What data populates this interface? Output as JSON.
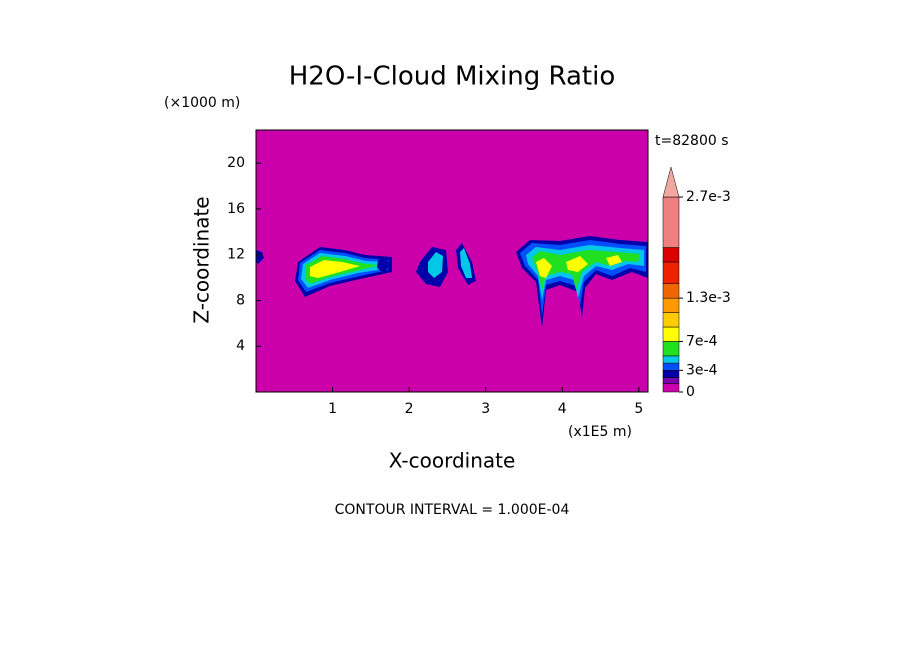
{
  "chart_data": {
    "type": "contour",
    "title": "H2O-I-Cloud Mixing Ratio",
    "y_unit": "(×1000 m)",
    "x_unit": "(x1E5 m)",
    "time_label": "t=82800 s",
    "xlabel": "X-coordinate",
    "ylabel": "Z-coordinate",
    "footnote": "CONTOUR INTERVAL = 1.000E-04",
    "xlim": [
      0,
      5.12
    ],
    "xticks": [
      1,
      2,
      3,
      4,
      5
    ],
    "ylim": [
      0,
      22.9
    ],
    "yticks": [
      4,
      8,
      12,
      16,
      20
    ],
    "background_color": "#cc00aa",
    "colorbar": {
      "clim": [
        0,
        0.0027
      ],
      "levels": [
        0,
        0.00012,
        0.0002,
        0.0003,
        0.0004,
        0.0005,
        0.0007,
        0.0009,
        0.0011,
        0.0013,
        0.0015,
        0.0018,
        0.002,
        0.0027
      ],
      "colors": [
        "#cc00aa",
        "#7a00b0",
        "#0000aa",
        "#0050ff",
        "#00c8e6",
        "#20e020",
        "#ffff00",
        "#ffcc00",
        "#ff9900",
        "#ee6600",
        "#ee2200",
        "#dd0000",
        "#f08080"
      ],
      "extend_color": "#f0a8a0",
      "ticks": [
        0,
        {
          "value": 0.0003,
          "label": "3e-4"
        },
        {
          "value": 0.0007,
          "label": "7e-4"
        },
        {
          "value": 0.0013,
          "label": "1.3e-3"
        },
        {
          "value": 0.0027,
          "label": "2.7e-3"
        }
      ]
    }
  }
}
